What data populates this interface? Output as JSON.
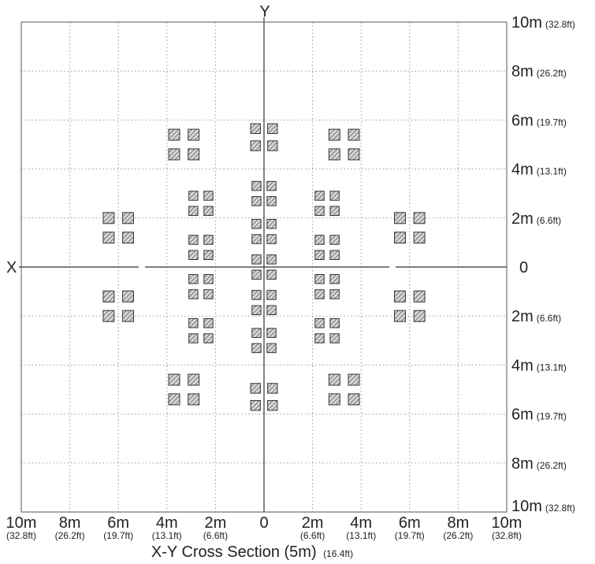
{
  "title": "X-Y Cross Section (5m)",
  "title_sub": "(16.4ft)",
  "axis_x_label": "X",
  "axis_y_label": "Y",
  "right_labels": [
    {
      "m": "10m",
      "ft": "(32.8ft)"
    },
    {
      "m": "8m",
      "ft": "(26.2ft)"
    },
    {
      "m": "6m",
      "ft": "(19.7ft)"
    },
    {
      "m": "4m",
      "ft": "(13.1ft)"
    },
    {
      "m": "2m",
      "ft": "(6.6ft)"
    },
    {
      "m": "0",
      "ft": ""
    },
    {
      "m": "2m",
      "ft": "(6.6ft)"
    },
    {
      "m": "4m",
      "ft": "(13.1ft)"
    },
    {
      "m": "6m",
      "ft": "(19.7ft)"
    },
    {
      "m": "8m",
      "ft": "(26.2ft)"
    },
    {
      "m": "10m",
      "ft": "(32.8ft)"
    }
  ],
  "bottom_labels": [
    {
      "m": "10m",
      "ft": "(32.8ft)"
    },
    {
      "m": "8m",
      "ft": "(26.2ft)"
    },
    {
      "m": "6m",
      "ft": "(19.7ft)"
    },
    {
      "m": "4m",
      "ft": "(13.1ft)"
    },
    {
      "m": "2m",
      "ft": "(6.6ft)"
    },
    {
      "m": "0",
      "ft": ""
    },
    {
      "m": "2m",
      "ft": "(6.6ft)"
    },
    {
      "m": "4m",
      "ft": "(13.1ft)"
    },
    {
      "m": "6m",
      "ft": "(19.7ft)"
    },
    {
      "m": "8m",
      "ft": "(26.2ft)"
    },
    {
      "m": "10m",
      "ft": "(32.8ft)"
    }
  ],
  "colors": {
    "grid": "#9a9a9a",
    "axis": "#333333",
    "frame": "#555555",
    "speaker_fill": "#d6d6d6",
    "speaker_stroke": "#333333"
  },
  "speaker_groups": [
    {
      "x": -6.0,
      "y": 1.6,
      "size": 0.45,
      "gap": 0.35
    },
    {
      "x": -6.0,
      "y": -1.6,
      "size": 0.45,
      "gap": 0.35
    },
    {
      "x": 6.0,
      "y": 1.6,
      "size": 0.45,
      "gap": 0.35
    },
    {
      "x": 6.0,
      "y": -1.6,
      "size": 0.45,
      "gap": 0.35
    },
    {
      "x": -3.3,
      "y": 5.0,
      "size": 0.45,
      "gap": 0.35
    },
    {
      "x": 3.3,
      "y": 5.0,
      "size": 0.45,
      "gap": 0.35
    },
    {
      "x": -3.3,
      "y": -5.0,
      "size": 0.45,
      "gap": 0.35
    },
    {
      "x": 3.3,
      "y": -5.0,
      "size": 0.45,
      "gap": 0.35
    },
    {
      "x": 0.0,
      "y": 5.3,
      "size": 0.4,
      "gap": 0.3
    },
    {
      "x": 0.0,
      "y": -5.3,
      "size": 0.4,
      "gap": 0.3
    },
    {
      "x": -2.6,
      "y": 2.6,
      "size": 0.37,
      "gap": 0.25
    },
    {
      "x": 2.6,
      "y": 2.6,
      "size": 0.37,
      "gap": 0.25
    },
    {
      "x": -2.6,
      "y": -2.6,
      "size": 0.37,
      "gap": 0.25
    },
    {
      "x": 2.6,
      "y": -2.6,
      "size": 0.37,
      "gap": 0.25
    },
    {
      "x": -2.6,
      "y": 0.8,
      "size": 0.37,
      "gap": 0.25
    },
    {
      "x": 2.6,
      "y": 0.8,
      "size": 0.37,
      "gap": 0.25
    },
    {
      "x": -2.6,
      "y": -0.8,
      "size": 0.37,
      "gap": 0.25
    },
    {
      "x": 2.6,
      "y": -0.8,
      "size": 0.37,
      "gap": 0.25
    },
    {
      "x": 0.0,
      "y": 3.0,
      "size": 0.37,
      "gap": 0.25
    },
    {
      "x": 0.0,
      "y": 1.45,
      "size": 0.37,
      "gap": 0.25
    },
    {
      "x": 0.0,
      "y": 0.0,
      "size": 0.37,
      "gap": 0.25
    },
    {
      "x": 0.0,
      "y": -1.45,
      "size": 0.37,
      "gap": 0.25
    },
    {
      "x": 0.0,
      "y": -3.0,
      "size": 0.37,
      "gap": 0.25
    }
  ]
}
